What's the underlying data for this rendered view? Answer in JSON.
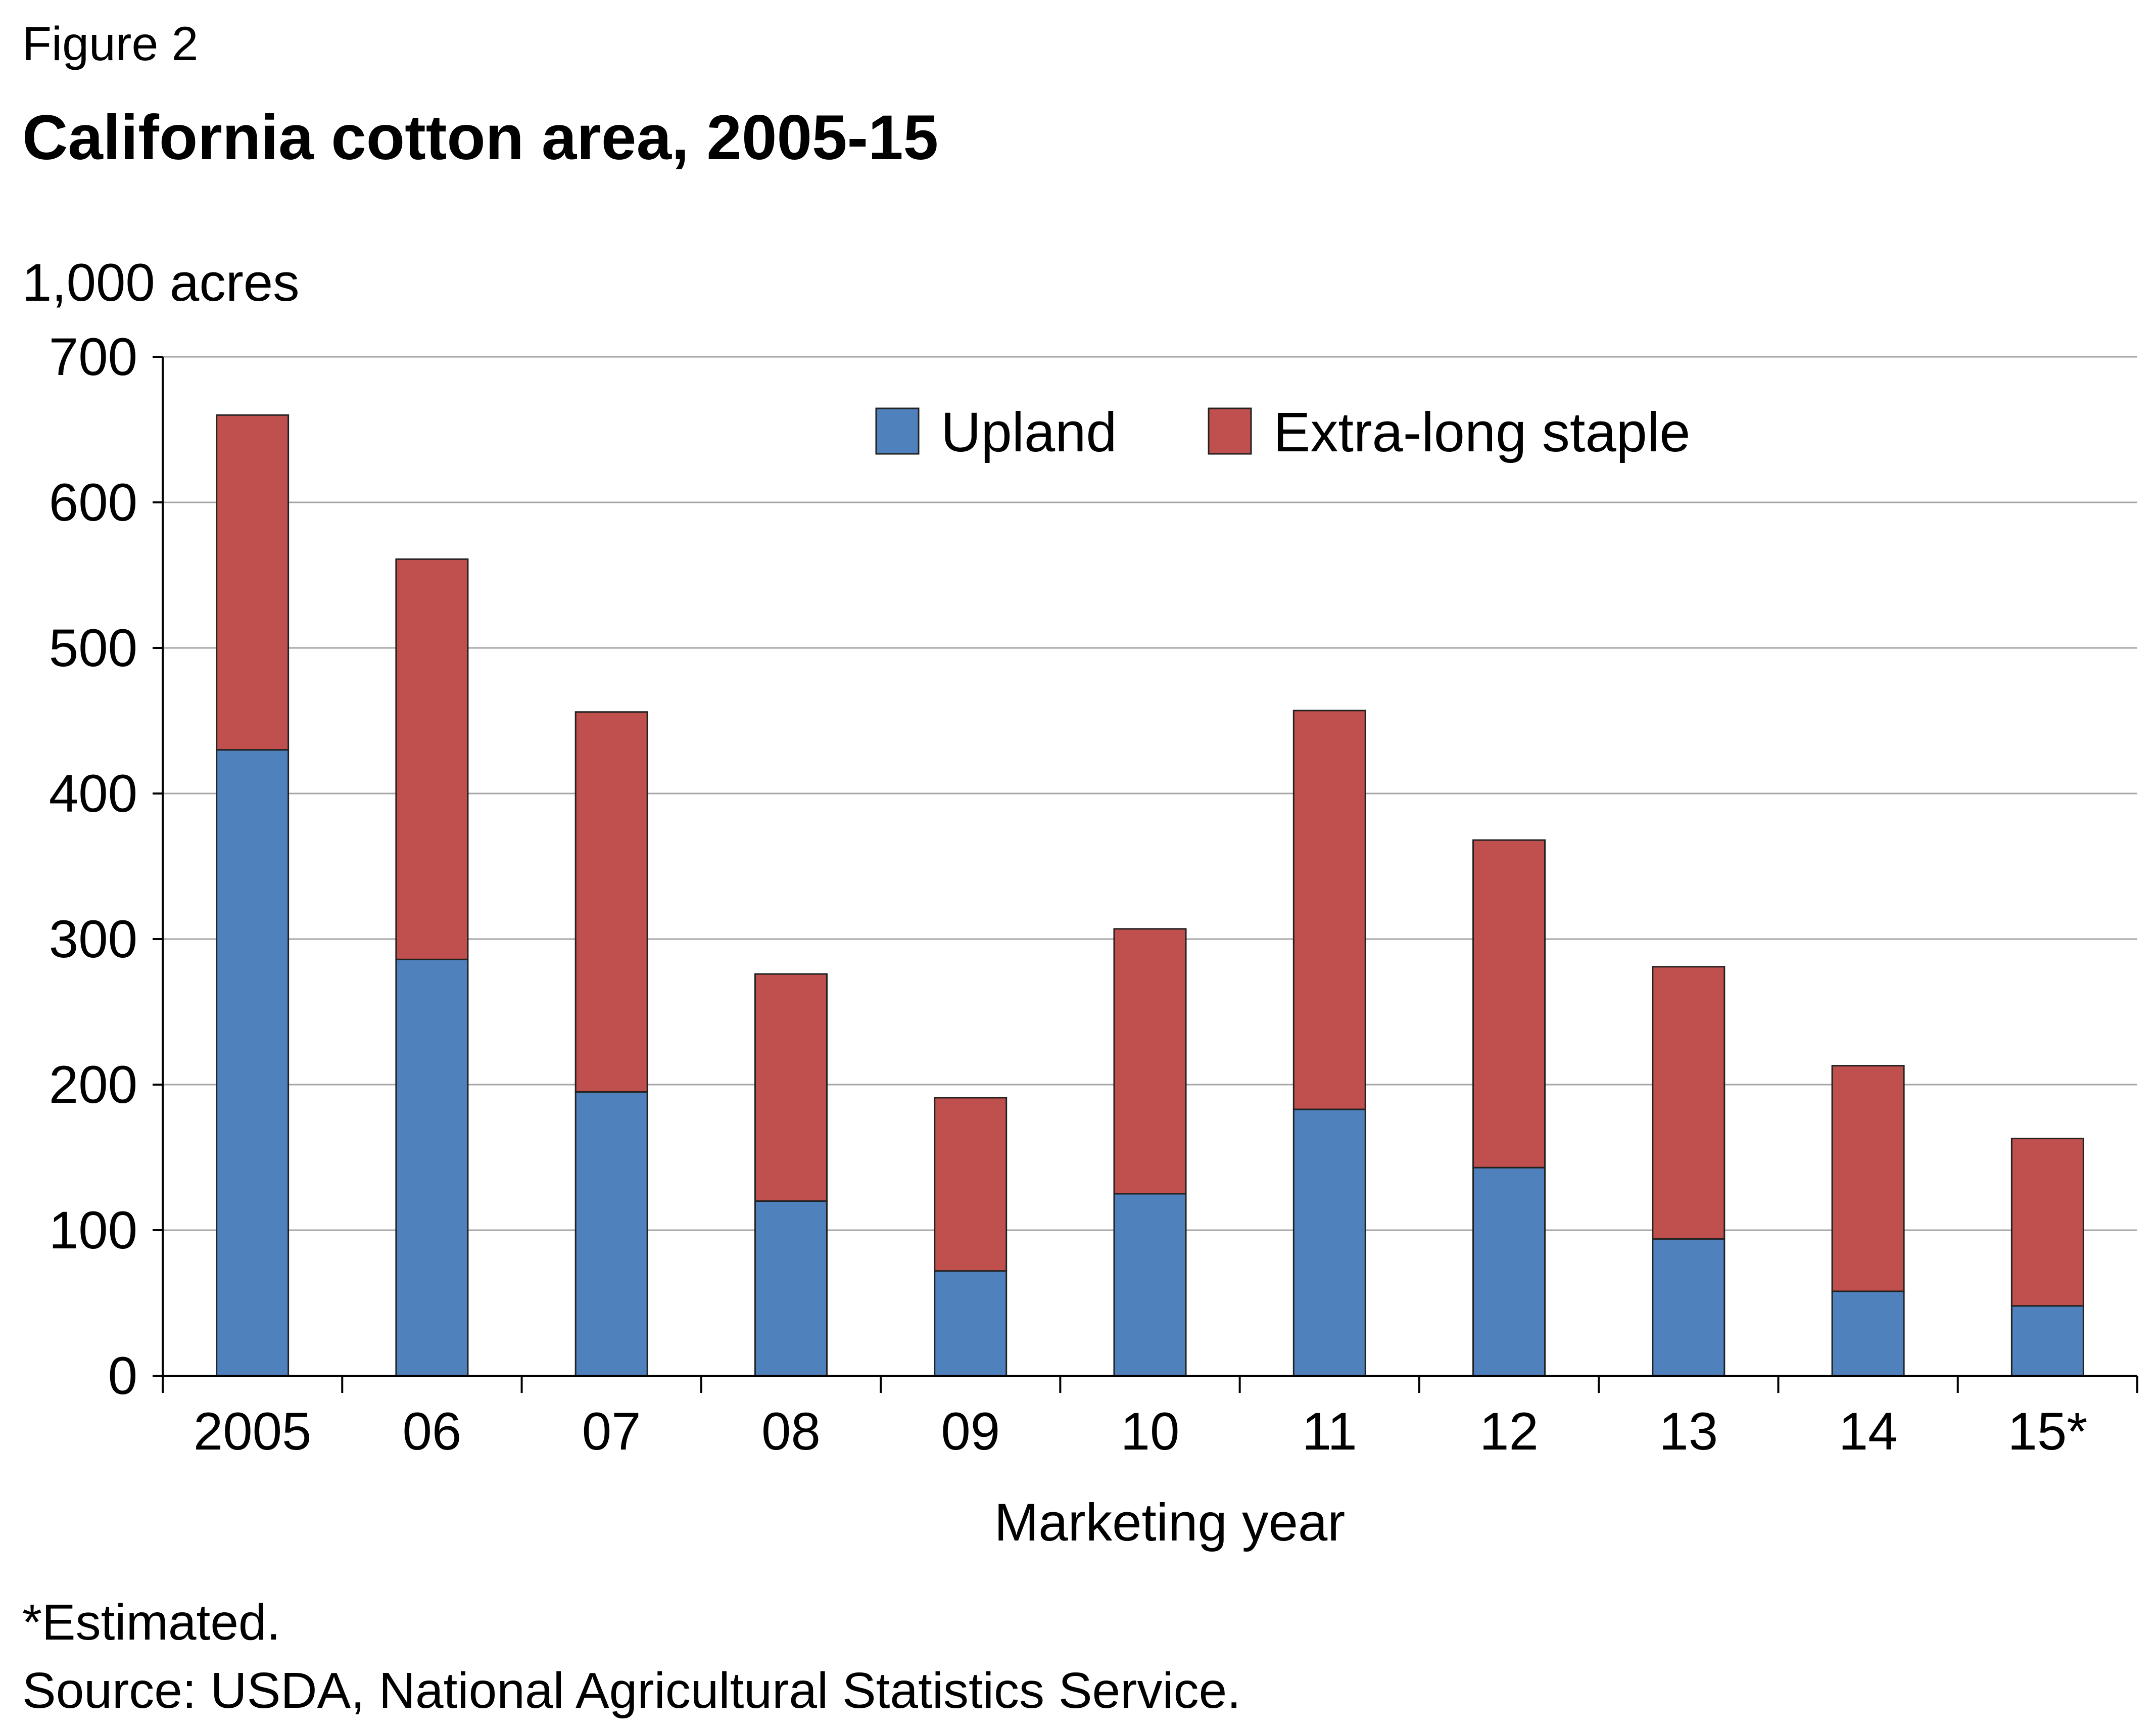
{
  "figure_label": "Figure 2",
  "footnotes": {
    "estimated": "*Estimated.",
    "source": "Source: USDA, National Agricultural Statistics Service."
  },
  "colors": {
    "upland": "#4f81bd",
    "extra_long_staple": "#c0504d",
    "gridline": "#a6a6a6",
    "axis": "#000000",
    "bar_outline": "#222222"
  },
  "chart_data": {
    "type": "bar",
    "stacked": true,
    "title": "California cotton area, 2005-15",
    "ylabel": "1,000 acres",
    "xlabel": "Marketing year",
    "categories": [
      "2005",
      "06",
      "07",
      "08",
      "09",
      "10",
      "11",
      "12",
      "13",
      "14",
      "15*"
    ],
    "series": [
      {
        "name": "Upland",
        "values": [
          430,
          286,
          195,
          120,
          72,
          125,
          183,
          143,
          94,
          58,
          48
        ]
      },
      {
        "name": "Extra-long staple",
        "values": [
          230,
          275,
          261,
          156,
          119,
          182,
          274,
          225,
          187,
          155,
          115
        ]
      }
    ],
    "ylim": [
      0,
      700
    ],
    "yticks": [
      0,
      100,
      200,
      300,
      400,
      500,
      600,
      700
    ],
    "grid": true,
    "legend_position": "top-center"
  }
}
